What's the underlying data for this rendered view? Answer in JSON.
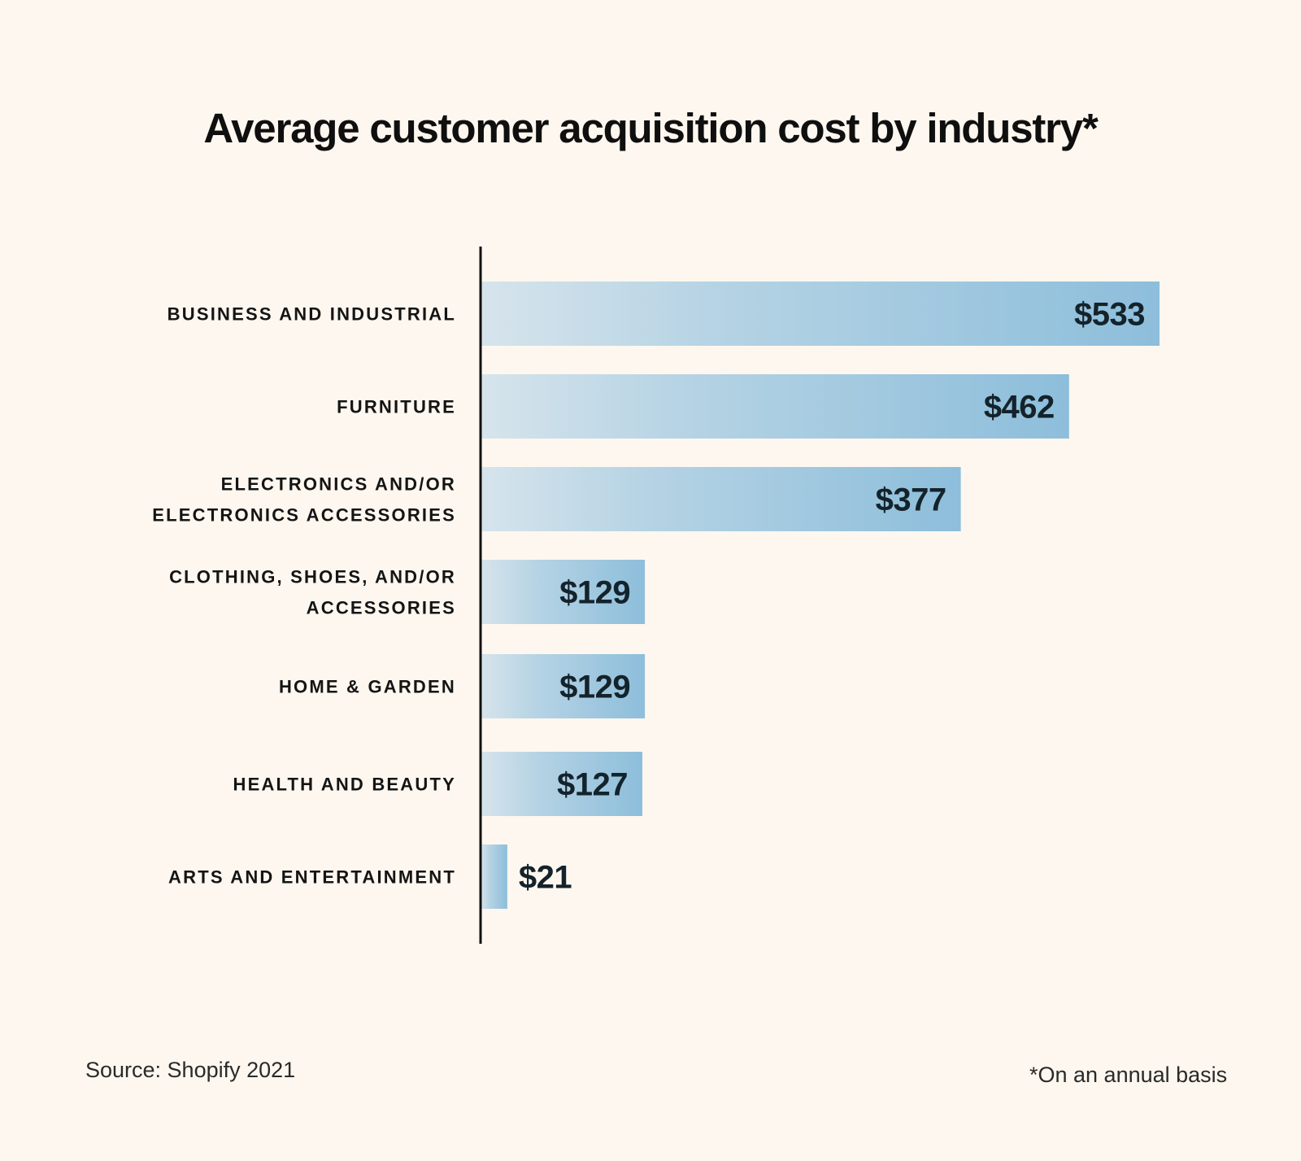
{
  "chart_data": {
    "type": "bar",
    "orientation": "horizontal",
    "title": "Average customer acquisition cost by industry*",
    "categories": [
      [
        "BUSINESS AND INDUSTRIAL"
      ],
      [
        "FURNITURE"
      ],
      [
        "ELECTRONICS AND/OR",
        "ELECTRONICS ACCESSORIES"
      ],
      [
        "CLOTHING, SHOES, AND/OR",
        "ACCESSORIES"
      ],
      [
        "HOME & GARDEN"
      ],
      [
        "HEALTH AND BEAUTY"
      ],
      [
        "ARTS AND ENTERTAINMENT"
      ]
    ],
    "values": [
      533,
      462,
      377,
      129,
      129,
      127,
      21
    ],
    "data_labels": [
      "$533",
      "$462",
      "$377",
      "$129",
      "$129",
      "$127",
      "$21"
    ],
    "xlim": [
      0,
      533
    ],
    "grid": false,
    "legend": false,
    "colors": {
      "bar_light": "#d6e4ec",
      "bar_mid": "#b5d3e4",
      "bar_dark": "#8dbedb",
      "axis": "#111111",
      "background": "#fdf7ef"
    }
  },
  "footer": {
    "source": "Source: Shopify 2021",
    "note": "*On an annual basis"
  }
}
